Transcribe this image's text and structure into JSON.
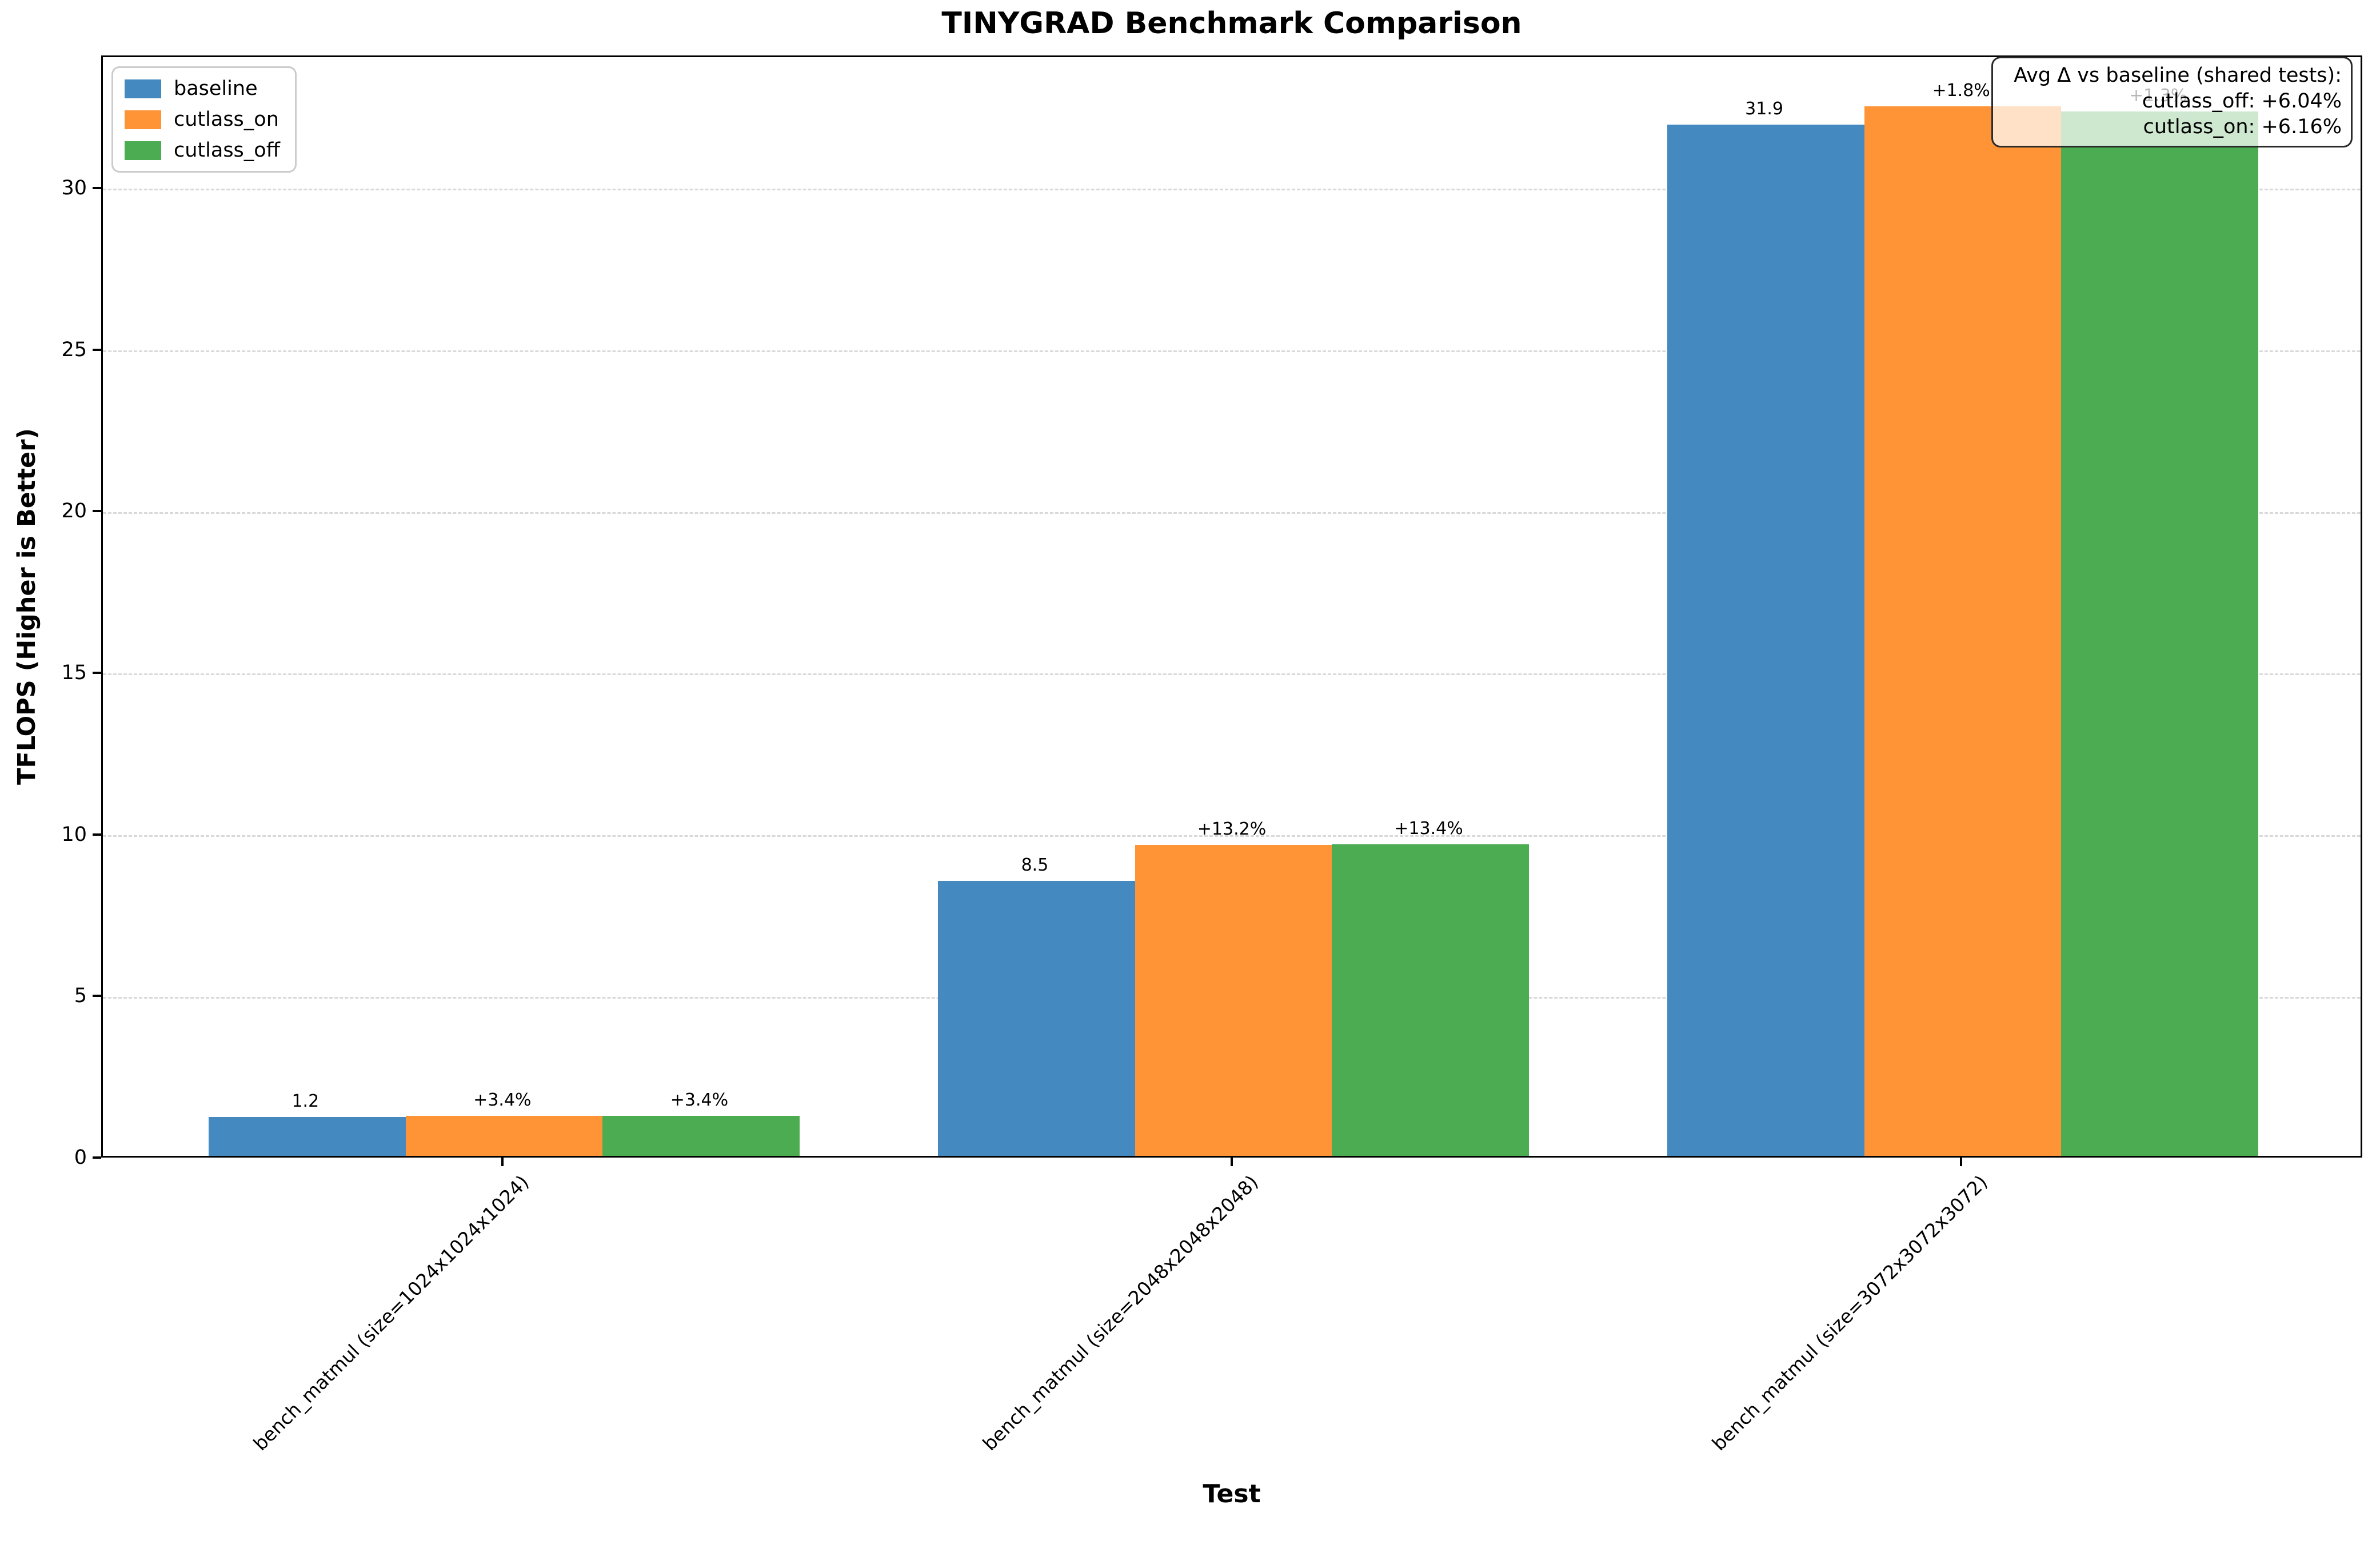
{
  "title": "TINYGRAD Benchmark Comparison",
  "colors": {
    "baseline": "#448ac0",
    "cutlass_on": "#ff9437",
    "cutlass_off": "#4cac52",
    "grid": "#d9d9d9",
    "annotation_border": "#2b2b2b",
    "legend_border": "#cccccc"
  },
  "annotation": {
    "lines": [
      "Avg Δ vs baseline (shared tests):",
      "cutlass_off: +6.04%",
      "cutlass_on: +6.16%"
    ]
  },
  "chart_data": {
    "type": "bar",
    "title": "TINYGRAD Benchmark Comparison",
    "xlabel": "Test",
    "ylabel": "TFLOPS (Higher is Better)",
    "categories": [
      "bench_matmul (size=1024x1024x1024)",
      "bench_matmul (size=2048x2048x2048)",
      "bench_matmul (size=3072x3072x3072)"
    ],
    "series": [
      {
        "name": "baseline",
        "color": "#448ac0",
        "values": [
          1.2,
          8.5,
          31.9
        ],
        "labels": [
          "1.2",
          "8.5",
          "31.9"
        ]
      },
      {
        "name": "cutlass_on",
        "color": "#ff9437",
        "values": [
          1.24,
          9.62,
          32.47
        ],
        "labels": [
          "+3.4%",
          "+13.2%",
          "+1.8%"
        ]
      },
      {
        "name": "cutlass_off",
        "color": "#4cac52",
        "values": [
          1.24,
          9.64,
          32.31
        ],
        "labels": [
          "+3.4%",
          "+13.4%",
          "+1.3%"
        ]
      }
    ],
    "yticks": [
      0,
      5,
      10,
      15,
      20,
      25,
      30
    ],
    "ylim": [
      0,
      34.1
    ],
    "grid": "horizontal dashed",
    "legend_position": "upper left",
    "bar_width_units": 0.27,
    "xlim": [
      -0.55,
      2.55
    ]
  }
}
